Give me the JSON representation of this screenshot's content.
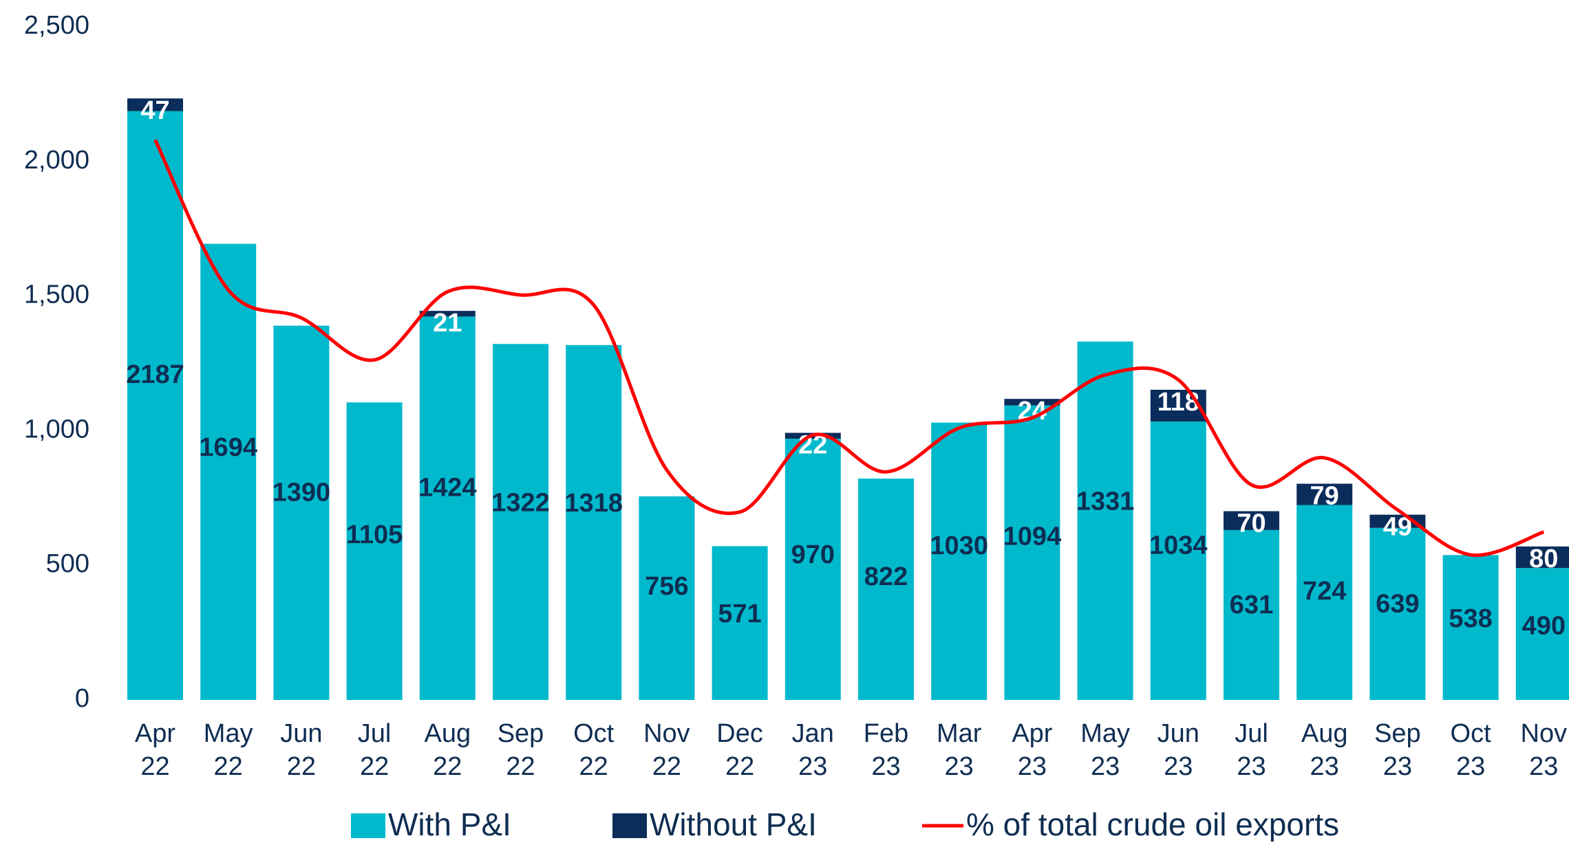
{
  "chart_data": {
    "type": "stacked_bar_line",
    "categories": [
      "Apr 22",
      "May 22",
      "Jun 22",
      "Jul 22",
      "Aug 22",
      "Sep 22",
      "Oct 22",
      "Nov 22",
      "Dec 22",
      "Jan 23",
      "Feb 23",
      "Mar 23",
      "Apr 23",
      "May 23",
      "Jun 23",
      "Jul 23",
      "Aug 23",
      "Sep 23",
      "Oct 23",
      "Nov 23"
    ],
    "series": [
      {
        "name": "With P&I",
        "color": "#00b9cc",
        "values": [
          2187,
          1694,
          1390,
          1105,
          1424,
          1322,
          1318,
          756,
          571,
          970,
          822,
          1030,
          1094,
          1331,
          1034,
          631,
          724,
          639,
          538,
          490
        ]
      },
      {
        "name": "Without P&I",
        "color": "#0b2d5b",
        "values": [
          47,
          null,
          null,
          null,
          21,
          null,
          null,
          null,
          null,
          22,
          null,
          null,
          24,
          null,
          118,
          70,
          79,
          49,
          null,
          80
        ]
      },
      {
        "name": "% of total crude oil exports",
        "color": "#ff0000",
        "kind": "line",
        "values": [
          2080,
          1523,
          1419,
          1263,
          1516,
          1504,
          1467,
          854,
          698,
          984,
          847,
          1010,
          1048,
          1207,
          1189,
          799,
          899,
          706,
          539,
          624
        ]
      }
    ],
    "ylim": [
      0,
      2500
    ],
    "yticks": [
      0,
      500,
      {
        "value": 1000,
        "label": "1,000"
      },
      {
        "value": 1500,
        "label": "1,500"
      },
      {
        "value": 2000,
        "label": "2,000"
      },
      {
        "value": 2500,
        "label": "2,500"
      }
    ],
    "grid": false,
    "legend": "bottom"
  }
}
